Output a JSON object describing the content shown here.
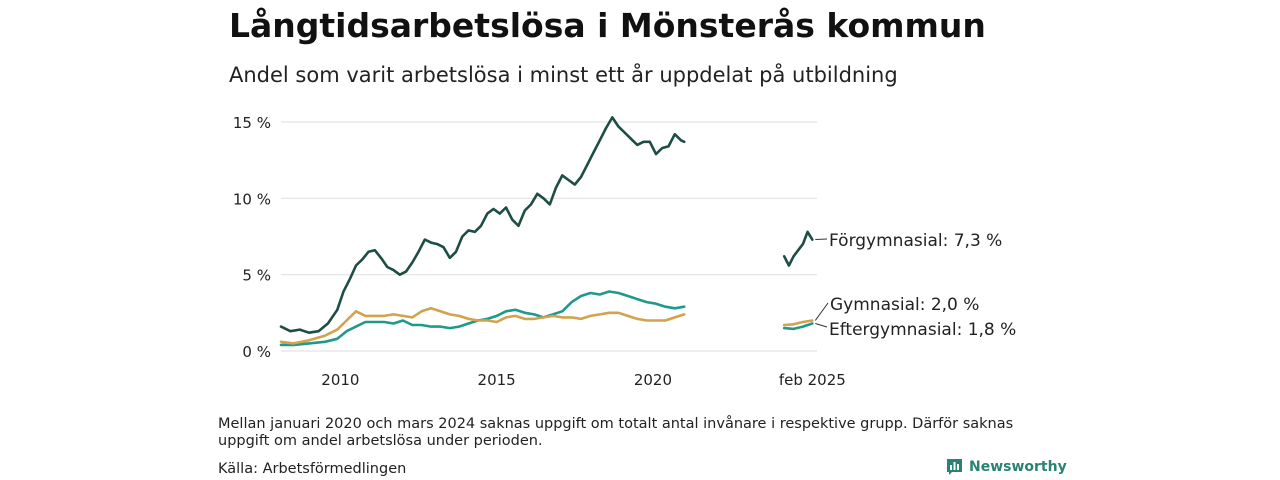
{
  "header": {
    "title": "Långtidsarbetslösa i Mönsterås kommun",
    "subtitle": "Andel som varit arbetslösa i minst ett år uppdelat på utbildning"
  },
  "footer": {
    "note": "Mellan januari 2020 och mars 2024 saknas uppgift om totalt antal invånare i respektive grupp. Därför saknas uppgift om andel arbetslösa under perioden.",
    "source": "Källa: Arbetsförmedlingen",
    "brand": "Newsworthy"
  },
  "icons": {
    "brand": "newsworthy-logo-icon"
  },
  "colors": {
    "forgymnasial": "#1e4d45",
    "gymnasial": "#d2a24c",
    "eftergymnasial": "#21998a",
    "grid": "#e3e3e3"
  },
  "chart_data": {
    "type": "line",
    "ylim": [
      0,
      15
    ],
    "yticks": [
      {
        "value": 0,
        "label": "0 %"
      },
      {
        "value": 5,
        "label": "5 %"
      },
      {
        "value": 10,
        "label": "10 %"
      },
      {
        "value": 15,
        "label": "15 %"
      }
    ],
    "xticks": [
      {
        "value": 2010,
        "label": "2010"
      },
      {
        "value": 2015,
        "label": "2015"
      },
      {
        "value": 2020,
        "label": "2020"
      },
      {
        "value": 2025.1,
        "label": "feb 2025"
      }
    ],
    "x_range": [
      2008.1,
      2025.25
    ],
    "series": [
      {
        "name": "Förgymnasial",
        "color_key": "forgymnasial",
        "end_label": "Förgymnasial: 7,3 %",
        "segments": [
          [
            [
              2008.1,
              1.6
            ],
            [
              2008.4,
              1.3
            ],
            [
              2008.7,
              1.4
            ],
            [
              2009.0,
              1.2
            ],
            [
              2009.3,
              1.3
            ],
            [
              2009.6,
              1.8
            ],
            [
              2009.9,
              2.7
            ],
            [
              2010.1,
              3.9
            ],
            [
              2010.3,
              4.7
            ],
            [
              2010.5,
              5.6
            ],
            [
              2010.7,
              6.0
            ],
            [
              2010.9,
              6.5
            ],
            [
              2011.1,
              6.6
            ],
            [
              2011.3,
              6.1
            ],
            [
              2011.5,
              5.5
            ],
            [
              2011.7,
              5.3
            ],
            [
              2011.9,
              5.0
            ],
            [
              2012.1,
              5.2
            ],
            [
              2012.3,
              5.8
            ],
            [
              2012.5,
              6.5
            ],
            [
              2012.7,
              7.3
            ],
            [
              2012.9,
              7.1
            ],
            [
              2013.1,
              7.0
            ],
            [
              2013.3,
              6.8
            ],
            [
              2013.5,
              6.1
            ],
            [
              2013.7,
              6.5
            ],
            [
              2013.9,
              7.5
            ],
            [
              2014.1,
              7.9
            ],
            [
              2014.3,
              7.8
            ],
            [
              2014.5,
              8.2
            ],
            [
              2014.7,
              9.0
            ],
            [
              2014.9,
              9.3
            ],
            [
              2015.1,
              9.0
            ],
            [
              2015.3,
              9.4
            ],
            [
              2015.5,
              8.6
            ],
            [
              2015.7,
              8.2
            ],
            [
              2015.9,
              9.2
            ],
            [
              2016.1,
              9.6
            ],
            [
              2016.3,
              10.3
            ],
            [
              2016.5,
              10.0
            ],
            [
              2016.7,
              9.6
            ],
            [
              2016.9,
              10.7
            ],
            [
              2017.1,
              11.5
            ],
            [
              2017.3,
              11.2
            ],
            [
              2017.5,
              10.9
            ],
            [
              2017.7,
              11.4
            ],
            [
              2017.9,
              12.2
            ],
            [
              2018.1,
              13.0
            ],
            [
              2018.3,
              13.8
            ],
            [
              2018.5,
              14.6
            ],
            [
              2018.7,
              15.3
            ],
            [
              2018.9,
              14.7
            ],
            [
              2019.1,
              14.3
            ],
            [
              2019.3,
              13.9
            ],
            [
              2019.5,
              13.5
            ],
            [
              2019.7,
              13.7
            ],
            [
              2019.9,
              13.7
            ],
            [
              2020.1,
              12.9
            ],
            [
              2020.3,
              13.3
            ],
            [
              2020.5,
              13.4
            ],
            [
              2020.7,
              14.2
            ],
            [
              2020.9,
              13.8
            ],
            [
              2021.0,
              13.7
            ]
          ],
          [
            [
              2024.2,
              6.2
            ],
            [
              2024.35,
              5.6
            ],
            [
              2024.5,
              6.2
            ],
            [
              2024.65,
              6.6
            ],
            [
              2024.8,
              7.0
            ],
            [
              2024.95,
              7.8
            ],
            [
              2025.1,
              7.3
            ]
          ]
        ]
      },
      {
        "name": "Gymnasial",
        "color_key": "gymnasial",
        "end_label": "Gymnasial: 2,0 %",
        "segments": [
          [
            [
              2008.1,
              0.6
            ],
            [
              2008.5,
              0.5
            ],
            [
              2009.0,
              0.7
            ],
            [
              2009.5,
              1.0
            ],
            [
              2009.9,
              1.4
            ],
            [
              2010.2,
              2.0
            ],
            [
              2010.5,
              2.6
            ],
            [
              2010.8,
              2.3
            ],
            [
              2011.1,
              2.3
            ],
            [
              2011.4,
              2.3
            ],
            [
              2011.7,
              2.4
            ],
            [
              2012.0,
              2.3
            ],
            [
              2012.3,
              2.2
            ],
            [
              2012.6,
              2.6
            ],
            [
              2012.9,
              2.8
            ],
            [
              2013.2,
              2.6
            ],
            [
              2013.5,
              2.4
            ],
            [
              2013.8,
              2.3
            ],
            [
              2014.1,
              2.1
            ],
            [
              2014.4,
              2.0
            ],
            [
              2014.7,
              2.0
            ],
            [
              2015.0,
              1.9
            ],
            [
              2015.3,
              2.2
            ],
            [
              2015.6,
              2.3
            ],
            [
              2015.9,
              2.1
            ],
            [
              2016.2,
              2.1
            ],
            [
              2016.5,
              2.2
            ],
            [
              2016.8,
              2.3
            ],
            [
              2017.1,
              2.2
            ],
            [
              2017.4,
              2.2
            ],
            [
              2017.7,
              2.1
            ],
            [
              2018.0,
              2.3
            ],
            [
              2018.3,
              2.4
            ],
            [
              2018.6,
              2.5
            ],
            [
              2018.9,
              2.5
            ],
            [
              2019.2,
              2.3
            ],
            [
              2019.5,
              2.1
            ],
            [
              2019.8,
              2.0
            ],
            [
              2020.1,
              2.0
            ],
            [
              2020.4,
              2.0
            ],
            [
              2020.7,
              2.2
            ],
            [
              2021.0,
              2.4
            ]
          ],
          [
            [
              2024.2,
              1.7
            ],
            [
              2024.5,
              1.75
            ],
            [
              2024.8,
              1.9
            ],
            [
              2025.1,
              2.0
            ]
          ]
        ]
      },
      {
        "name": "Eftergymnasial",
        "color_key": "eftergymnasial",
        "end_label": "Eftergymnasial: 1,8 %",
        "segments": [
          [
            [
              2008.1,
              0.4
            ],
            [
              2008.5,
              0.4
            ],
            [
              2009.0,
              0.5
            ],
            [
              2009.5,
              0.6
            ],
            [
              2009.9,
              0.8
            ],
            [
              2010.2,
              1.3
            ],
            [
              2010.5,
              1.6
            ],
            [
              2010.8,
              1.9
            ],
            [
              2011.1,
              1.9
            ],
            [
              2011.4,
              1.9
            ],
            [
              2011.7,
              1.8
            ],
            [
              2012.0,
              2.0
            ],
            [
              2012.3,
              1.7
            ],
            [
              2012.6,
              1.7
            ],
            [
              2012.9,
              1.6
            ],
            [
              2013.2,
              1.6
            ],
            [
              2013.5,
              1.5
            ],
            [
              2013.8,
              1.6
            ],
            [
              2014.1,
              1.8
            ],
            [
              2014.4,
              2.0
            ],
            [
              2014.7,
              2.1
            ],
            [
              2015.0,
              2.3
            ],
            [
              2015.3,
              2.6
            ],
            [
              2015.6,
              2.7
            ],
            [
              2015.9,
              2.5
            ],
            [
              2016.2,
              2.4
            ],
            [
              2016.5,
              2.2
            ],
            [
              2016.8,
              2.4
            ],
            [
              2017.1,
              2.6
            ],
            [
              2017.4,
              3.2
            ],
            [
              2017.7,
              3.6
            ],
            [
              2018.0,
              3.8
            ],
            [
              2018.3,
              3.7
            ],
            [
              2018.6,
              3.9
            ],
            [
              2018.9,
              3.8
            ],
            [
              2019.2,
              3.6
            ],
            [
              2019.5,
              3.4
            ],
            [
              2019.8,
              3.2
            ],
            [
              2020.1,
              3.1
            ],
            [
              2020.4,
              2.9
            ],
            [
              2020.7,
              2.8
            ],
            [
              2021.0,
              2.9
            ]
          ],
          [
            [
              2024.2,
              1.5
            ],
            [
              2024.5,
              1.45
            ],
            [
              2024.8,
              1.6
            ],
            [
              2025.1,
              1.8
            ]
          ]
        ]
      }
    ]
  }
}
